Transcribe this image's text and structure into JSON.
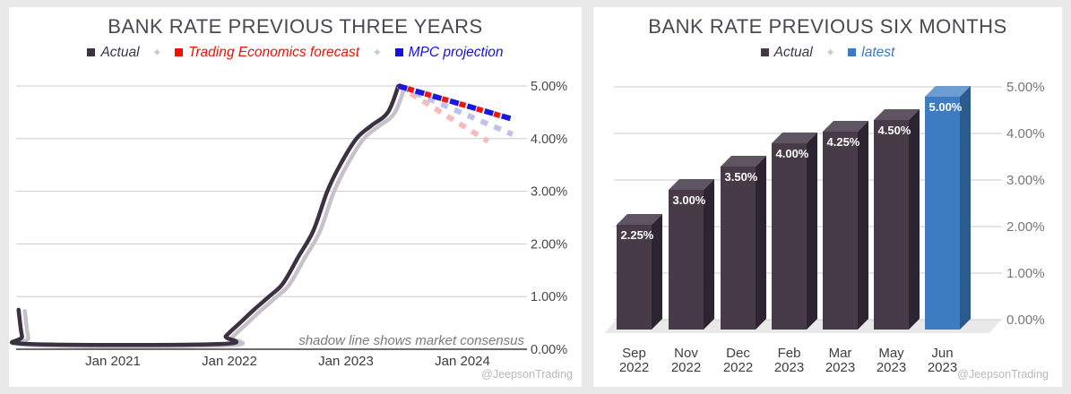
{
  "ui": {
    "credit": "@JeepsonTrading",
    "legend_separator": "✦"
  },
  "colors": {
    "background": "#e9e9e9",
    "panel": "#ffffff",
    "grid": "#cbcbcb",
    "axis_line": "#3c3c3c",
    "title": "#4b4650",
    "left_axis_label": "#474747",
    "bottom_axis_label": "#3d3d3d",
    "right_axis_label": "#767676",
    "annotation": "#7b7b7b",
    "credit": "#b7b7b7",
    "floor": "#e9e9e9"
  },
  "chart_data": [
    {
      "type": "line",
      "title": "BANK RATE PREVIOUS THREE YEARS",
      "legend_items": [
        {
          "label": "Actual",
          "swatch": "#3b3142",
          "text_color": "#3a3540"
        },
        {
          "label": "Trading Economics forecast",
          "swatch": "#f21005",
          "text_color": "#f21005"
        },
        {
          "label": "MPC projection",
          "swatch": "#1411e1",
          "text_color": "#1411e1"
        }
      ],
      "annotation": "shadow line shows market consensus",
      "x_ticks": [
        "Jan 2021",
        "Jan 2022",
        "Jan 2023",
        "Jan 2024"
      ],
      "y_ticks": [
        "5.00%",
        "4.00%",
        "3.00%",
        "2.00%",
        "1.00%",
        "0.00%"
      ],
      "ylim": [
        0,
        5
      ],
      "x_unit": "decimal year",
      "series": [
        {
          "name": "Actual",
          "color": "#3b3142",
          "width": 4.5,
          "shadow_color": "#c7c2c9",
          "shadow_shift": [
            7,
            1.5
          ],
          "points": [
            [
              2020.19,
              0.75
            ],
            [
              2020.22,
              0.25
            ],
            [
              2020.27,
              0.1
            ],
            [
              2021.93,
              0.1
            ],
            [
              2021.97,
              0.25
            ],
            [
              2022.09,
              0.5
            ],
            [
              2022.21,
              0.75
            ],
            [
              2022.34,
              1.0
            ],
            [
              2022.46,
              1.25
            ],
            [
              2022.59,
              1.75
            ],
            [
              2022.72,
              2.25
            ],
            [
              2022.84,
              3.0
            ],
            [
              2022.95,
              3.5
            ],
            [
              2023.09,
              4.0
            ],
            [
              2023.22,
              4.25
            ],
            [
              2023.36,
              4.5
            ],
            [
              2023.45,
              5.0
            ]
          ]
        },
        {
          "name": "Trading Economics forecast shadow (market consensus)",
          "color": "#f7bcba",
          "width": 6,
          "dash": "8 8",
          "points": [
            [
              2023.45,
              5.0
            ],
            [
              2024.22,
              3.95
            ]
          ]
        },
        {
          "name": "MPC projection shadow (market consensus)",
          "color": "#bdc1ec",
          "width": 6,
          "dash": "8 8",
          "dashoffset": -4,
          "points": [
            [
              2023.45,
              5.0
            ],
            [
              2024.43,
              4.08
            ]
          ]
        },
        {
          "name": "MPC projection",
          "color": "#1b18dd",
          "width": 6,
          "dash": "10 10",
          "points": [
            [
              2023.45,
              5.0
            ],
            [
              2024.43,
              4.37
            ]
          ]
        },
        {
          "name": "Trading Economics forecast",
          "color": "#f2150c",
          "width": 6,
          "dash": "7 13",
          "dashoffset": -11,
          "points": [
            [
              2023.45,
              5.0
            ],
            [
              2024.38,
              4.4
            ]
          ]
        }
      ]
    },
    {
      "type": "bar",
      "title": "BANK RATE PREVIOUS SIX MONTHS",
      "legend_items": [
        {
          "label": "Actual",
          "swatch": "#443a45",
          "text_color": "#3a3540"
        },
        {
          "label": "latest",
          "swatch": "#3d7cc0",
          "text_color": "#3b79bd"
        }
      ],
      "categories": [
        "Sep 2022",
        "Nov 2022",
        "Dec 2022",
        "Feb 2023",
        "Mar 2023",
        "May 2023",
        "Jun 2023"
      ],
      "values": [
        2.25,
        3.0,
        3.5,
        4.0,
        4.25,
        4.5,
        5.0
      ],
      "bar_labels": [
        "2.25%",
        "3.00%",
        "3.50%",
        "4.00%",
        "4.25%",
        "4.50%",
        "5.00%"
      ],
      "y_ticks": [
        "5.00%",
        "4.00%",
        "3.00%",
        "2.00%",
        "1.00%",
        "0.00%"
      ],
      "ylim": [
        0,
        5
      ],
      "highlight_index": 6,
      "bar_colors": {
        "default": {
          "front": "#463b47",
          "top": "#5f5461",
          "side": "#2d2431"
        },
        "latest": {
          "front": "#3d7cc0",
          "top": "#6d9cd1",
          "side": "#2b5a8c"
        }
      }
    }
  ]
}
